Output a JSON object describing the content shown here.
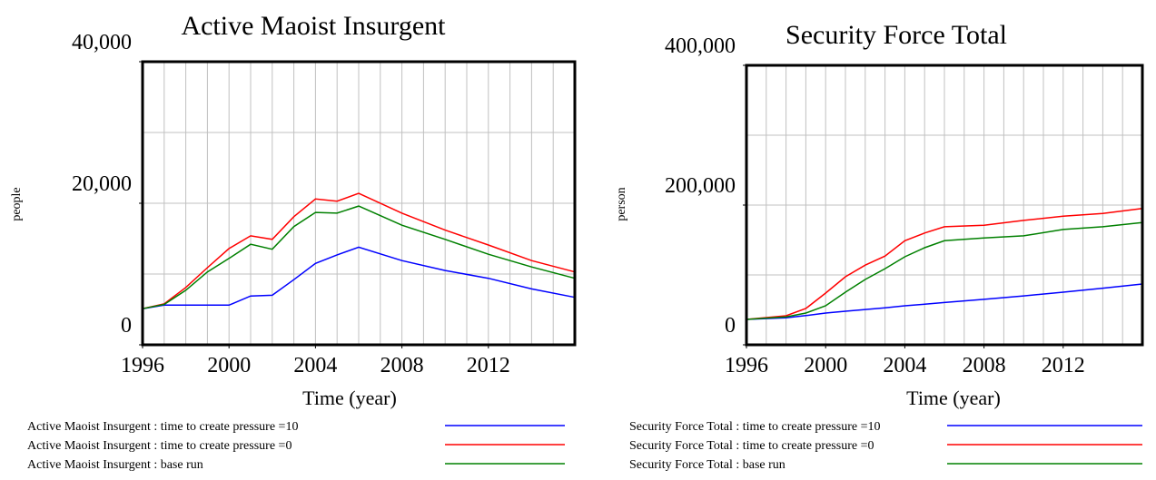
{
  "chart_data": [
    {
      "type": "line",
      "title": "Active Maoist Insurgent",
      "x_label": "Time (year)",
      "y_label": "people",
      "x": [
        1996,
        1997,
        1998,
        1999,
        2000,
        2001,
        2002,
        2003,
        2004,
        2005,
        2006,
        2008,
        2010,
        2012,
        2014,
        2016
      ],
      "xlim": [
        1996,
        2016
      ],
      "xticks": [
        1996,
        2000,
        2004,
        2008,
        2012
      ],
      "ylim": [
        0,
        40000
      ],
      "yticks": [
        {
          "value": 0,
          "label": "0"
        },
        {
          "value": 20000,
          "label": "20,000"
        },
        {
          "value": 40000,
          "label": "40,000"
        }
      ],
      "grid": true,
      "xgrid_step": 1,
      "ygrid_step": 10000,
      "series": [
        {
          "name": "Active Maoist Insurgent : time to create pressure =10",
          "color": "#0000ff",
          "values": [
            5100,
            5600,
            5600,
            5600,
            5600,
            6900,
            7000,
            9200,
            11500,
            12700,
            13800,
            11900,
            10500,
            9400,
            7900,
            6700
          ]
        },
        {
          "name": "Active Maoist Insurgent : time to create pressure =0",
          "color": "#ff0000",
          "values": [
            5100,
            5800,
            8100,
            10900,
            13600,
            15400,
            14900,
            18100,
            20600,
            20300,
            21400,
            18600,
            16200,
            14100,
            11900,
            10300
          ]
        },
        {
          "name": "Active Maoist Insurgent : base run",
          "color": "#008000",
          "values": [
            5100,
            5700,
            7700,
            10300,
            12200,
            14200,
            13500,
            16700,
            18700,
            18600,
            19600,
            16900,
            14900,
            12800,
            11000,
            9400
          ]
        }
      ]
    },
    {
      "type": "line",
      "title": "Security Force Total",
      "x_label": "Time (year)",
      "y_label": "person",
      "x": [
        1996,
        1998,
        1999,
        2000,
        2001,
        2002,
        2003,
        2004,
        2005,
        2006,
        2008,
        2010,
        2012,
        2014,
        2016
      ],
      "xlim": [
        1996,
        2016
      ],
      "xticks": [
        1996,
        2000,
        2004,
        2008,
        2012
      ],
      "ylim": [
        0,
        400000
      ],
      "yticks": [
        {
          "value": 0,
          "label": "0"
        },
        {
          "value": 200000,
          "label": "200,000"
        },
        {
          "value": 400000,
          "label": "400,000"
        }
      ],
      "grid": true,
      "xgrid_step": 1,
      "ygrid_step": 100000,
      "series": [
        {
          "name": "Security Force Total : time to create pressure =10",
          "color": "#0000ff",
          "values": [
            36400,
            38600,
            41800,
            45500,
            48000,
            50500,
            53000,
            55800,
            58000,
            60500,
            65000,
            70000,
            75300,
            81000,
            87000
          ]
        },
        {
          "name": "Security Force Total : time to create pressure =0",
          "color": "#ff0000",
          "values": [
            36400,
            41600,
            52000,
            74000,
            97400,
            114000,
            127000,
            149000,
            160000,
            169000,
            171000,
            178000,
            184000,
            188000,
            195000
          ]
        },
        {
          "name": "Security Force Total : base run",
          "color": "#008000",
          "values": [
            36400,
            40000,
            45500,
            55800,
            75300,
            93500,
            109000,
            126000,
            139000,
            149000,
            153000,
            156000,
            165000,
            169000,
            175000
          ]
        }
      ]
    }
  ]
}
